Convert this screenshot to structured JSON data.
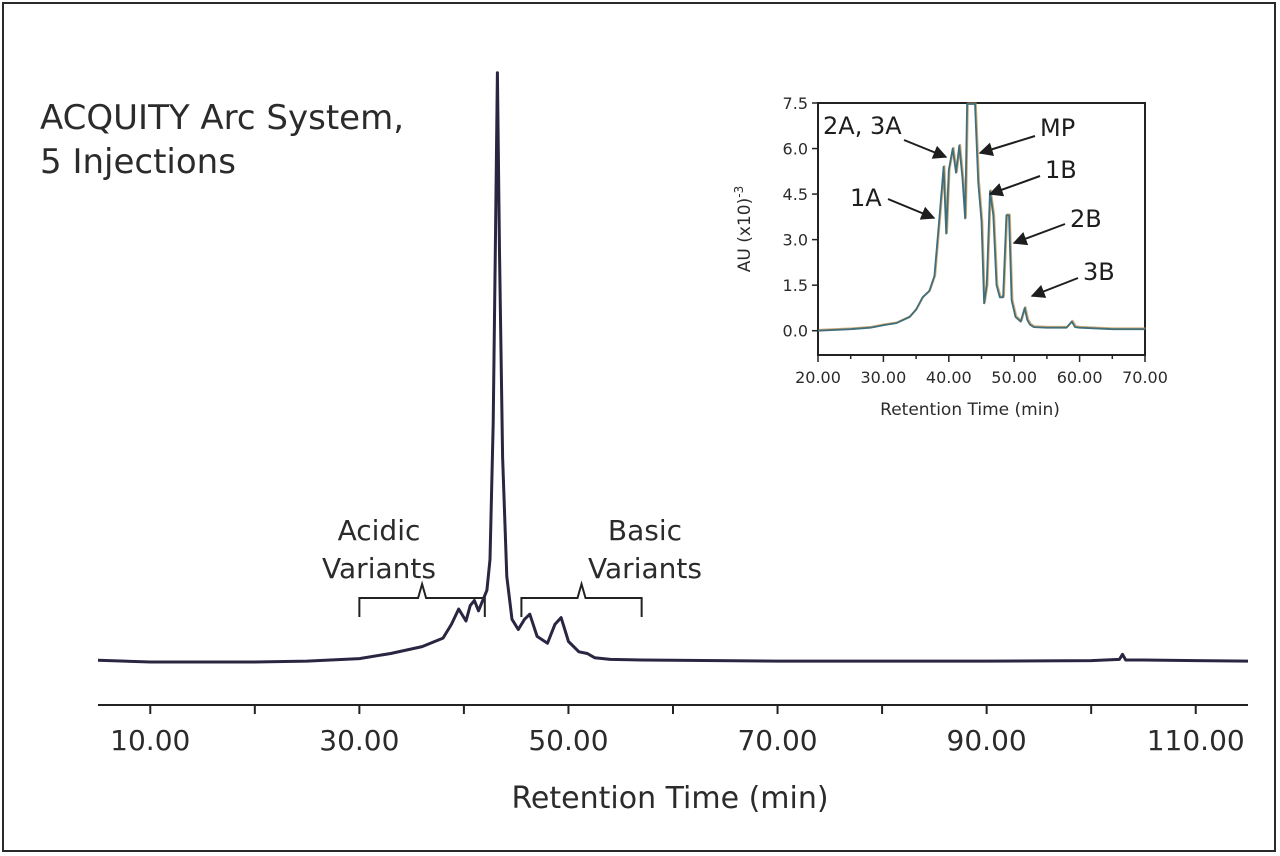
{
  "title_lines": [
    "ACQUITY Arc System,",
    "5 Injections"
  ],
  "colors": {
    "trace_main": "#2b2542",
    "trace_inset": "#3f6f7a",
    "trace_inset_alt": "#c0863a",
    "axis": "#222222",
    "text": "#2b2b2b"
  },
  "chart_data": [
    {
      "type": "line",
      "title": "",
      "xlabel": "Retention Time (min)",
      "ylabel": "",
      "xlim": [
        5,
        115
      ],
      "xticks": [
        "10.00",
        "30.00",
        "50.00",
        "70.00",
        "90.00",
        "110.00"
      ],
      "xtick_values": [
        10,
        30,
        50,
        70,
        90,
        110
      ],
      "ylim": [
        0,
        37
      ],
      "grid": false,
      "series": [
        {
          "x": [
            5,
            10,
            20,
            25,
            30,
            33,
            36,
            38,
            38.8,
            39.5,
            40.2,
            40.6,
            41,
            41.4,
            41.8,
            42.2,
            42.5,
            42.8,
            43.0,
            43.2,
            43.4,
            43.7,
            44.1,
            44.6,
            45.2,
            45.8,
            46.3,
            47,
            48,
            48.7,
            49.3,
            50,
            51,
            51.8,
            52.5,
            54,
            57,
            60,
            70,
            80,
            90,
            100,
            102.7,
            103,
            103.3,
            105,
            110,
            115
          ],
          "y": [
            0.1,
            0,
            0,
            0.05,
            0.2,
            0.5,
            0.9,
            1.4,
            2.2,
            3.1,
            2.4,
            3.3,
            3.6,
            3.0,
            3.6,
            4.2,
            6,
            14,
            24,
            34.5,
            24,
            12,
            5,
            2.5,
            1.9,
            2.5,
            2.8,
            1.5,
            1.1,
            2.2,
            2.6,
            1.2,
            0.6,
            0.5,
            0.25,
            0.15,
            0.12,
            0.1,
            0.05,
            0.05,
            0.05,
            0.08,
            0.15,
            0.45,
            0.12,
            0.12,
            0.08,
            0.05
          ]
        }
      ],
      "annotations": [
        {
          "label_lines": [
            "Acidic",
            "Variants"
          ],
          "bracket": [
            30,
            42
          ]
        },
        {
          "label_lines": [
            "Basic",
            "Variants"
          ],
          "bracket": [
            45.5,
            57
          ]
        }
      ]
    },
    {
      "type": "line",
      "title": "",
      "xlabel": "Retention Time (min)",
      "ylabel": "AU (x10)",
      "ylabel_superscript": "-3",
      "xlim": [
        20,
        70
      ],
      "ylim": [
        -0.8,
        7.5
      ],
      "xticks": [
        "20.00",
        "30.00",
        "40.00",
        "50.00",
        "60.00",
        "70.00"
      ],
      "xtick_values": [
        20,
        30,
        40,
        50,
        60,
        70
      ],
      "yticks": [
        "0.0",
        "1.5",
        "3.0",
        "4.5",
        "6.0",
        "7.5"
      ],
      "ytick_values": [
        0,
        1.5,
        3,
        4.5,
        6,
        7.5
      ],
      "grid": false,
      "series": [
        {
          "x": [
            20,
            25,
            28,
            30,
            32,
            34,
            35,
            36,
            37,
            37.8,
            38.6,
            39.2,
            39.6,
            40.0,
            40.6,
            41.1,
            41.6,
            42.1,
            42.5,
            42.8,
            43.1,
            43.4,
            43.7,
            44.0,
            44.5,
            45.0,
            45.4,
            45.8,
            46.3,
            46.8,
            47.3,
            47.8,
            48.3,
            48.8,
            49.2,
            49.6,
            50.2,
            51,
            51.6,
            52,
            52.4,
            53,
            55,
            58,
            58.8,
            59.3,
            60,
            65,
            70
          ],
          "y": [
            0.0,
            0.05,
            0.1,
            0.18,
            0.25,
            0.45,
            0.7,
            1.1,
            1.3,
            1.8,
            3.8,
            5.4,
            3.2,
            5.3,
            6.0,
            5.2,
            6.1,
            5.0,
            3.7,
            7.5,
            7.5,
            7.5,
            7.5,
            7.5,
            4.9,
            3.6,
            0.9,
            1.5,
            4.6,
            3.8,
            1.5,
            1.1,
            1.1,
            3.8,
            3.8,
            1.0,
            0.45,
            0.3,
            0.75,
            0.35,
            0.2,
            0.12,
            0.1,
            0.1,
            0.3,
            0.12,
            0.1,
            0.05,
            0.05
          ]
        }
      ],
      "annotations": [
        {
          "label": "2A, 3A",
          "x": 41.3,
          "y": 5.9
        },
        {
          "label": "MP",
          "x": 43.3,
          "y": 6.0
        },
        {
          "label": "1A",
          "x": 39.2,
          "y": 4.3
        },
        {
          "label": "1B",
          "x": 46.5,
          "y": 4.5
        },
        {
          "label": "2B",
          "x": 49.7,
          "y": 3.0
        },
        {
          "label": "3B",
          "x": 51.8,
          "y": 0.9
        }
      ]
    }
  ]
}
